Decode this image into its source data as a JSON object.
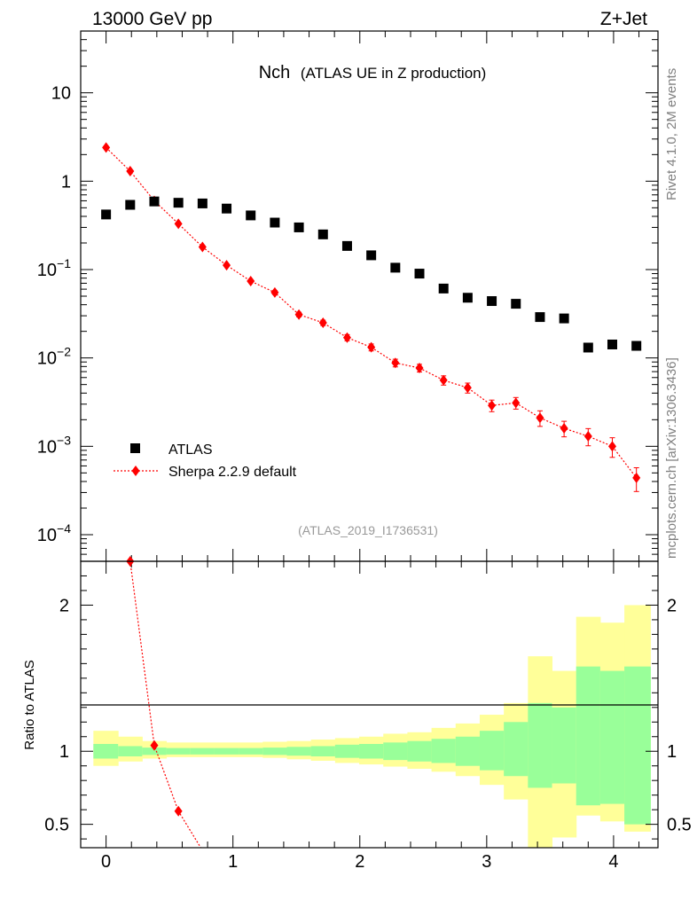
{
  "header": {
    "left": "13000 GeV pp",
    "right": "Z+Jet"
  },
  "side_text": {
    "rivet": "Rivet 4.1.0,  2M events",
    "mcplots": "mcplots.cern.ch [arXiv:1306.3436]"
  },
  "colors": {
    "atlas": "#000000",
    "sherpa": "#ff0000",
    "band_inner": "#99ff99",
    "band_outer": "#ffff99",
    "watermark": "#999999"
  },
  "chart_data": [
    {
      "type": "scatter",
      "title": "Nch",
      "subtitle": "(ATLAS UE in Z production)",
      "watermark": "(ATLAS_2019_I1736531)",
      "yscale": "log",
      "xlim": [
        -0.2,
        4.35
      ],
      "ylim": [
        5e-05,
        50
      ],
      "ytick_labels": [
        {
          "v": 10,
          "base": "10",
          "exp": ""
        },
        {
          "v": 1,
          "base": "1",
          "exp": ""
        },
        {
          "v": 0.1,
          "base": "10",
          "exp": "−1"
        },
        {
          "v": 0.01,
          "base": "10",
          "exp": "−2"
        },
        {
          "v": 0.001,
          "base": "10",
          "exp": "−3"
        },
        {
          "v": 0.0001,
          "base": "10",
          "exp": "−4"
        }
      ],
      "legend": {
        "position": "lower-left",
        "entries": [
          "ATLAS",
          "Sherpa 2.2.9 default"
        ]
      },
      "series": [
        {
          "name": "ATLAS",
          "marker": "square",
          "x": [
            0,
            0.19,
            0.38,
            0.57,
            0.76,
            0.95,
            1.14,
            1.33,
            1.52,
            1.71,
            1.9,
            2.09,
            2.28,
            2.47,
            2.66,
            2.85,
            3.04,
            3.23,
            3.42,
            3.61,
            3.8,
            3.99,
            4.18
          ],
          "y": [
            0.42,
            0.54,
            0.59,
            0.57,
            0.56,
            0.49,
            0.41,
            0.34,
            0.3,
            0.25,
            0.185,
            0.145,
            0.105,
            0.09,
            0.061,
            0.048,
            0.044,
            0.041,
            0.029,
            0.028,
            0.0131,
            0.0142,
            0.0137
          ]
        },
        {
          "name": "Sherpa 2.2.9 default",
          "marker": "diamond",
          "x": [
            0,
            0.19,
            0.38,
            0.57,
            0.76,
            0.95,
            1.14,
            1.33,
            1.52,
            1.71,
            1.9,
            2.09,
            2.28,
            2.47,
            2.66,
            2.85,
            3.04,
            3.23,
            3.42,
            3.61,
            3.8,
            3.99,
            4.18
          ],
          "y": [
            2.4,
            1.3,
            0.6,
            0.33,
            0.18,
            0.112,
            0.074,
            0.055,
            0.031,
            0.025,
            0.017,
            0.0132,
            0.0088,
            0.0077,
            0.0056,
            0.0046,
            0.0029,
            0.0031,
            0.0021,
            0.0016,
            0.0013,
            0.001,
            0.00044
          ],
          "yerr_rel": [
            0.02,
            0.02,
            0.02,
            0.02,
            0.03,
            0.03,
            0.04,
            0.05,
            0.06,
            0.07,
            0.08,
            0.09,
            0.1,
            0.1,
            0.12,
            0.13,
            0.15,
            0.15,
            0.2,
            0.2,
            0.22,
            0.25,
            0.3
          ]
        }
      ]
    },
    {
      "type": "area",
      "ylabel": "Ratio to ATLAS",
      "xlim": [
        -0.2,
        4.35
      ],
      "ylim": [
        0.34,
        2.3
      ],
      "xticks": [
        0,
        1,
        2,
        3,
        4
      ],
      "yticks": [
        0.5,
        1,
        2
      ],
      "bin_edges": [
        -0.1,
        0.095,
        0.285,
        0.475,
        0.665,
        0.855,
        1.045,
        1.235,
        1.425,
        1.615,
        1.805,
        1.995,
        2.185,
        2.375,
        2.565,
        2.755,
        2.945,
        3.135,
        3.325,
        3.515,
        3.705,
        3.895,
        4.085,
        4.29
      ],
      "band_inner": {
        "lo": [
          0.95,
          0.965,
          0.975,
          0.978,
          0.978,
          0.978,
          0.978,
          0.975,
          0.97,
          0.965,
          0.955,
          0.95,
          0.94,
          0.93,
          0.92,
          0.9,
          0.87,
          0.83,
          0.75,
          0.78,
          0.63,
          0.64,
          0.5
        ],
        "hi": [
          1.05,
          1.035,
          1.025,
          1.022,
          1.022,
          1.022,
          1.022,
          1.025,
          1.03,
          1.035,
          1.045,
          1.05,
          1.06,
          1.07,
          1.085,
          1.1,
          1.14,
          1.2,
          1.33,
          1.3,
          1.58,
          1.55,
          1.58
        ]
      },
      "band_outer": {
        "lo": [
          0.9,
          0.93,
          0.95,
          0.96,
          0.96,
          0.96,
          0.96,
          0.955,
          0.945,
          0.935,
          0.92,
          0.91,
          0.895,
          0.88,
          0.86,
          0.83,
          0.77,
          0.67,
          0.34,
          0.41,
          0.56,
          0.52,
          0.45
        ],
        "hi": [
          1.14,
          1.1,
          1.07,
          1.06,
          1.06,
          1.06,
          1.06,
          1.065,
          1.07,
          1.08,
          1.09,
          1.1,
          1.12,
          1.13,
          1.16,
          1.19,
          1.25,
          1.33,
          1.65,
          1.55,
          1.92,
          1.88,
          2.0
        ]
      },
      "series": [
        {
          "name": "Sherpa 2.2.9 default",
          "x": [
            0.19,
            0.38,
            0.57,
            0.76
          ],
          "y": [
            2.3,
            1.04,
            0.59,
            0.32
          ]
        }
      ]
    }
  ]
}
